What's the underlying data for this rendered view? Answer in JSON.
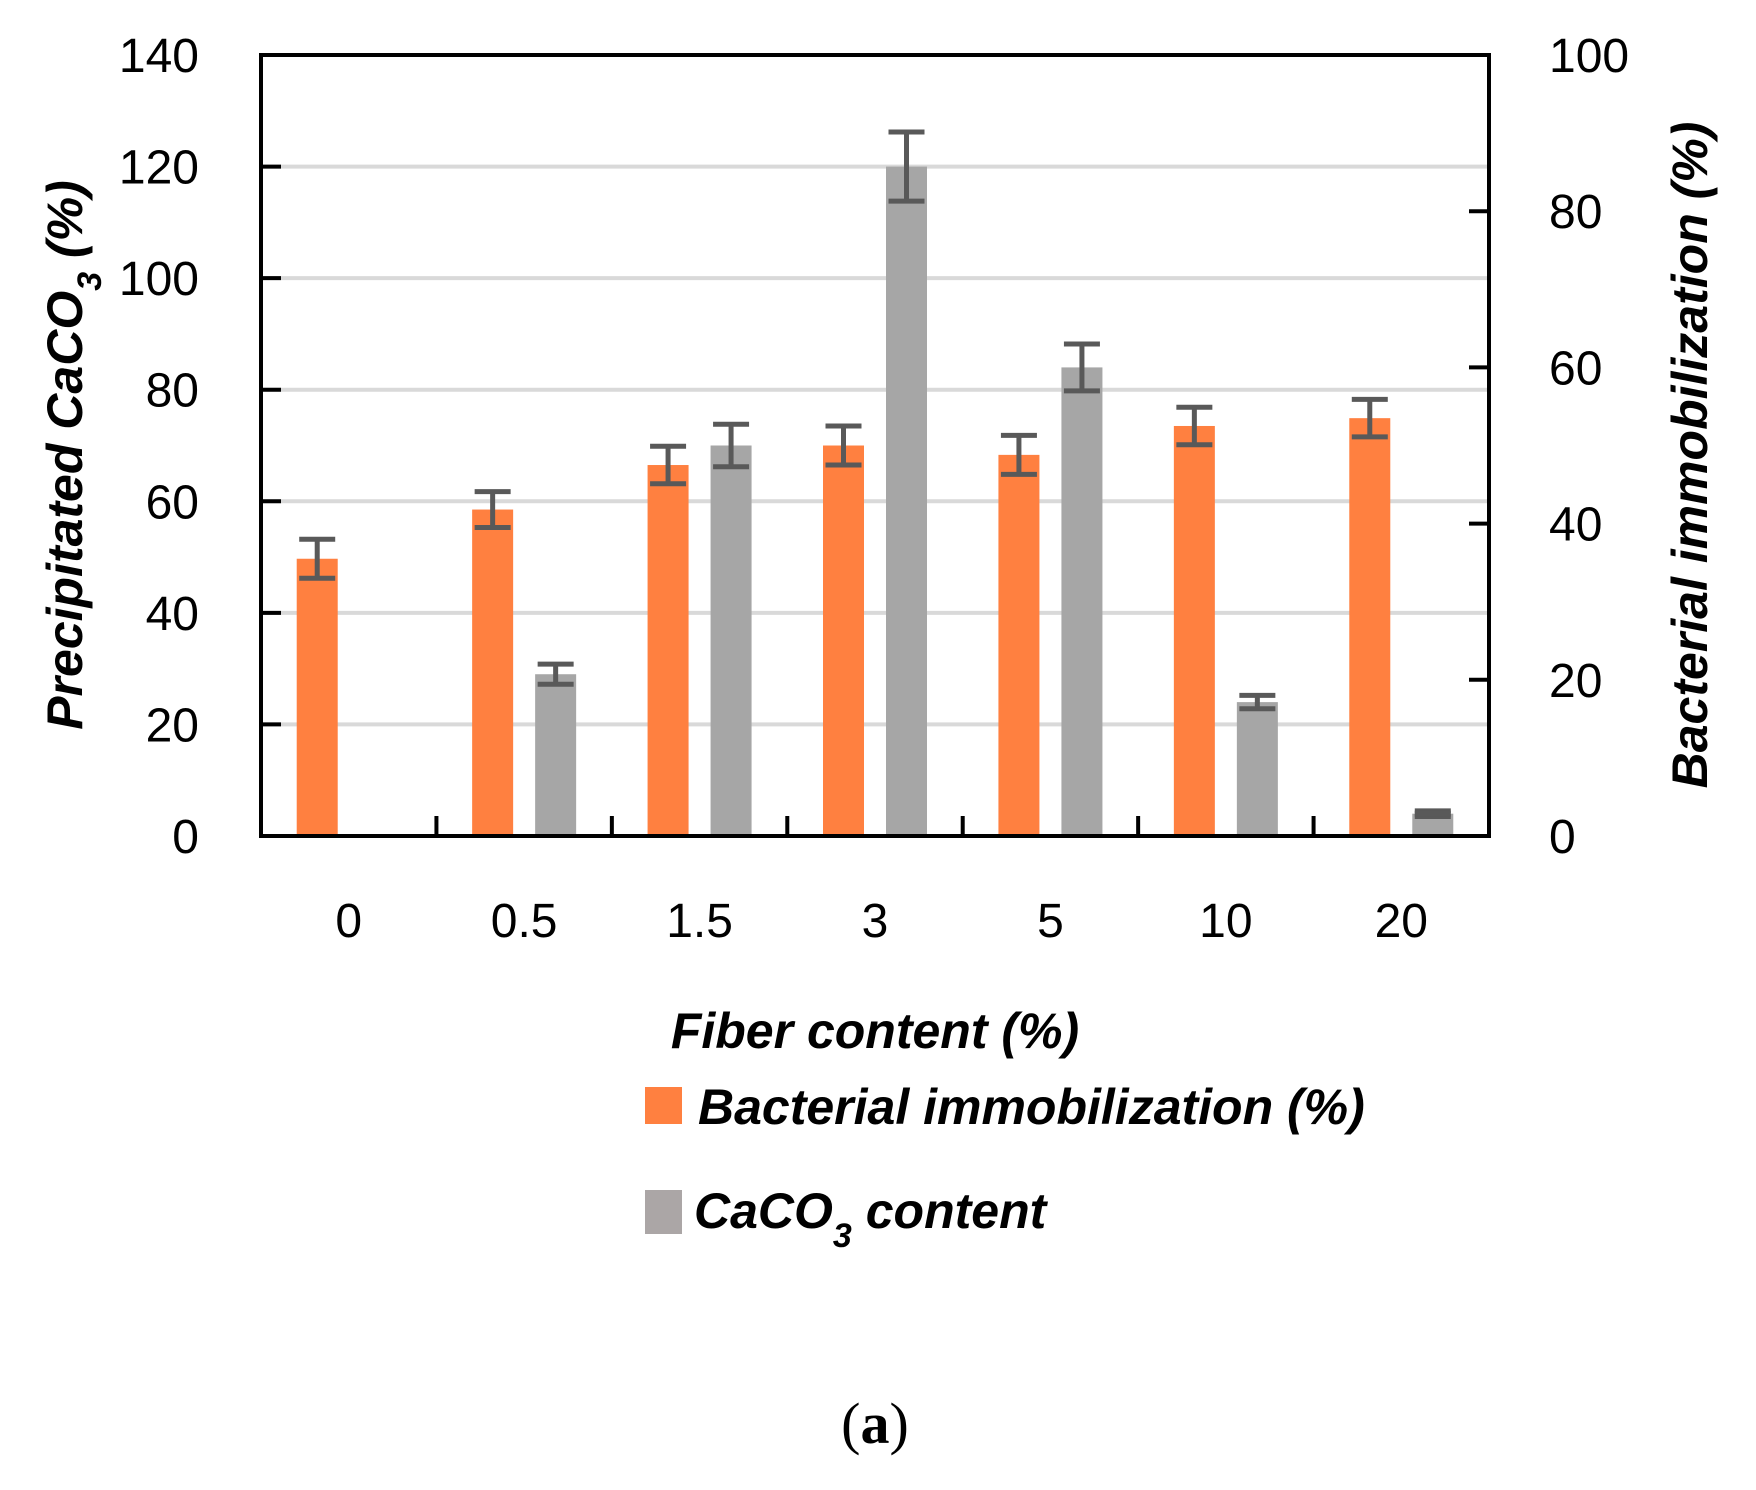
{
  "chart_data": {
    "type": "bar",
    "categories": [
      "0",
      "0.5",
      "1.5",
      "3",
      "5",
      "10",
      "20"
    ],
    "xlabel": "Fiber content (%)",
    "ylabel_left": {
      "main": "Precipitated CaCO",
      "sub": "3",
      "suffix": " (%)"
    },
    "ylabel_right": "Bacterial immobilization (%)",
    "ylim_left": [
      0,
      140
    ],
    "ylim_right": [
      0,
      100
    ],
    "yticks_left": [
      0,
      20,
      40,
      60,
      80,
      100,
      120,
      140
    ],
    "yticks_right": [
      0,
      20,
      40,
      60,
      80,
      100
    ],
    "grid": true,
    "legend_position": "bottom",
    "series": [
      {
        "name": "Bacterial immobilization (%)",
        "axis": "right",
        "color": "#ff8040",
        "values": [
          35.5,
          41.8,
          47.5,
          50.0,
          48.8,
          52.5,
          53.5
        ],
        "errors": [
          2.5,
          2.3,
          2.4,
          2.5,
          2.5,
          2.4,
          2.4
        ]
      },
      {
        "name": "CaCO3 content",
        "axis": "left",
        "color": "#a6a6a6",
        "values": [
          0,
          29,
          70,
          120,
          84,
          24,
          4
        ],
        "errors": [
          0,
          1.8,
          3.8,
          6.2,
          4.2,
          1.2,
          0.5
        ]
      }
    ],
    "legend": [
      {
        "label": "Bacterial immobilization (%)",
        "color": "#ff8040"
      },
      {
        "label_main": "CaCO",
        "label_sub": "3",
        "label_suffix": " content",
        "color": "#a6a6a6"
      }
    ]
  },
  "caption": {
    "open": "(",
    "letter": "a",
    "close": ")"
  }
}
